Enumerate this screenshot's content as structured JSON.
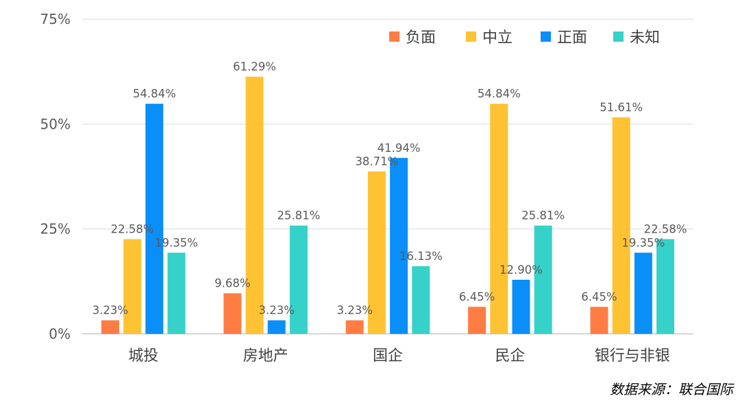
{
  "chart_data": {
    "type": "bar",
    "categories": [
      "城投",
      "房地产",
      "国企",
      "民企",
      "银行与非银"
    ],
    "series": [
      {
        "name": "负面",
        "color": "#FF7C43",
        "values": [
          3.23,
          9.68,
          3.23,
          6.45,
          6.45
        ],
        "labels": [
          "3.23%",
          "9.68%",
          "3.23%",
          "6.45%",
          "6.45%"
        ]
      },
      {
        "name": "中立",
        "color": "#FFC233",
        "values": [
          22.58,
          61.29,
          38.71,
          54.84,
          51.61
        ],
        "labels": [
          "22.58%",
          "61.29%",
          "38.71%",
          "54.84%",
          "51.61%"
        ]
      },
      {
        "name": "正面",
        "color": "#0A8EF8",
        "values": [
          54.84,
          3.23,
          41.94,
          12.9,
          19.35
        ],
        "labels": [
          "54.84%",
          "3.23%",
          "41.94%",
          "12.90%",
          "19.35%"
        ]
      },
      {
        "name": "未知",
        "color": "#36D1C9",
        "values": [
          19.35,
          25.81,
          16.13,
          25.81,
          22.58
        ],
        "labels": [
          "19.35%",
          "25.81%",
          "16.13%",
          "25.81%",
          "22.58%"
        ]
      }
    ],
    "ylim": [
      0,
      75
    ],
    "yticks": [
      0,
      25,
      50,
      75
    ],
    "ytick_labels": [
      "0%",
      "25%",
      "50%",
      "75%"
    ],
    "grid": true,
    "legend_position": "top-right"
  },
  "source_note": "数据来源：联合国际"
}
